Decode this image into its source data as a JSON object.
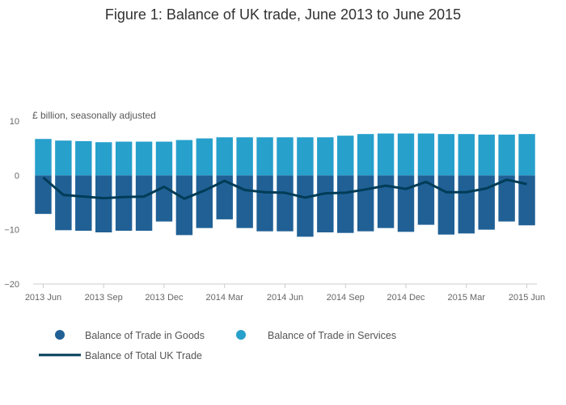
{
  "chart_data": {
    "type": "bar",
    "title": "Figure 1: Balance of UK trade, June 2013 to June 2015",
    "ylabel": "£ billion, seasonally adjusted",
    "xlabel": "",
    "ylim": [
      -20,
      10
    ],
    "yticks": [
      10,
      0,
      -10,
      -20
    ],
    "grid": false,
    "stacked": true,
    "categories": [
      "2013 Jun",
      "2013 Jul",
      "2013 Aug",
      "2013 Sep",
      "2013 Oct",
      "2013 Nov",
      "2013 Dec",
      "2014 Jan",
      "2014 Feb",
      "2014 Mar",
      "2014 Apr",
      "2014 May",
      "2014 Jun",
      "2014 Jul",
      "2014 Aug",
      "2014 Sep",
      "2014 Oct",
      "2014 Nov",
      "2014 Dec",
      "2015 Jan",
      "2015 Feb",
      "2015 Mar",
      "2015 Apr",
      "2015 May",
      "2015 Jun"
    ],
    "xtick_labels": [
      {
        "index": 0,
        "label": "2013 Jun"
      },
      {
        "index": 3,
        "label": "2013 Sep"
      },
      {
        "index": 6,
        "label": "2013 Dec"
      },
      {
        "index": 9,
        "label": "2014 Mar"
      },
      {
        "index": 12,
        "label": "2014 Jun"
      },
      {
        "index": 15,
        "label": "2014 Sep"
      },
      {
        "index": 18,
        "label": "2014 Dec"
      },
      {
        "index": 21,
        "label": "2015 Mar"
      },
      {
        "index": 24,
        "label": "2015 Jun"
      }
    ],
    "series": [
      {
        "name": "Balance of Trade in Goods",
        "kind": "bar",
        "color": "#206095",
        "values": [
          -7.1,
          -10.1,
          -10.2,
          -10.5,
          -10.2,
          -10.2,
          -8.5,
          -11.0,
          -9.7,
          -8.1,
          -9.7,
          -10.3,
          -10.3,
          -11.3,
          -10.5,
          -10.6,
          -10.3,
          -9.7,
          -10.4,
          -9.1,
          -10.9,
          -10.7,
          -10.0,
          -8.5,
          -9.2
        ]
      },
      {
        "name": "Balance of Trade in Services",
        "kind": "bar",
        "color": "#27a0cc",
        "values": [
          6.7,
          6.4,
          6.3,
          6.1,
          6.2,
          6.2,
          6.2,
          6.5,
          6.8,
          7.0,
          7.0,
          7.0,
          7.0,
          7.0,
          7.0,
          7.3,
          7.6,
          7.7,
          7.7,
          7.7,
          7.6,
          7.6,
          7.5,
          7.5,
          7.6
        ]
      },
      {
        "name": "Balance of Total UK Trade",
        "kind": "line",
        "color": "#003c57",
        "values": [
          -0.4,
          -3.6,
          -3.9,
          -4.2,
          -4.0,
          -3.9,
          -2.1,
          -4.3,
          -2.8,
          -1.0,
          -2.7,
          -3.1,
          -3.2,
          -4.1,
          -3.3,
          -3.2,
          -2.6,
          -1.9,
          -2.5,
          -1.2,
          -3.1,
          -3.1,
          -2.4,
          -0.8,
          -1.6
        ]
      }
    ],
    "legend": {
      "placement": "bottom"
    }
  }
}
